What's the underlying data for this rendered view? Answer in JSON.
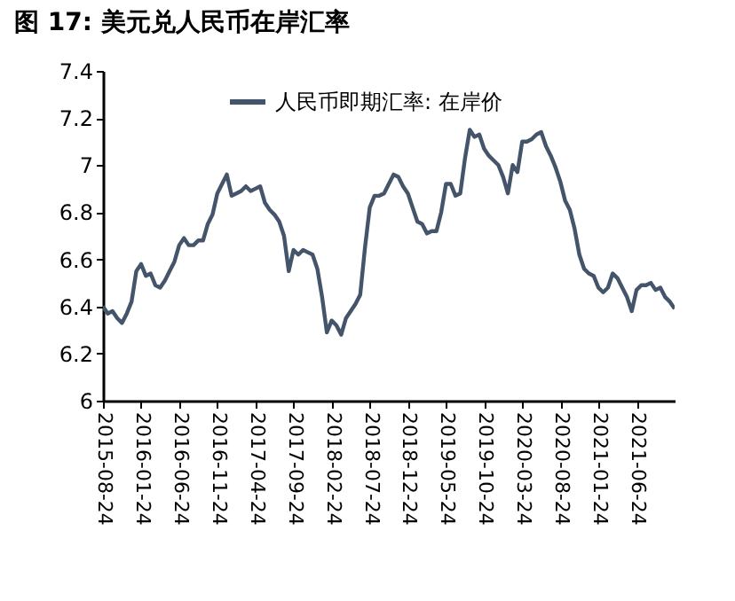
{
  "chart_data": {
    "type": "line",
    "title": "图 17: 美元兑人民币在岸汇率",
    "categories": [
      "2015-08-24",
      null,
      null,
      null,
      null,
      null,
      null,
      null,
      "2016-01-24",
      null,
      null,
      null,
      null,
      null,
      null,
      null,
      "2016-06-24",
      null,
      null,
      null,
      null,
      null,
      null,
      null,
      "2016-11-24",
      null,
      null,
      null,
      null,
      null,
      null,
      null,
      "2017-04-24",
      null,
      null,
      null,
      null,
      null,
      null,
      null,
      "2017-09-24",
      null,
      null,
      null,
      null,
      null,
      null,
      null,
      "2018-02-24",
      null,
      null,
      null,
      null,
      null,
      null,
      null,
      "2018-07-24",
      null,
      null,
      null,
      null,
      null,
      null,
      null,
      "2018-12-24",
      null,
      null,
      null,
      null,
      null,
      null,
      null,
      "2019-05-24",
      null,
      null,
      null,
      null,
      null,
      null,
      null,
      "2019-10-24",
      null,
      null,
      null,
      null,
      null,
      null,
      null,
      "2020-03-24",
      null,
      null,
      null,
      null,
      null,
      null,
      null,
      "2020-08-24",
      null,
      null,
      null,
      null,
      null,
      null,
      null,
      "2021-01-24",
      null,
      null,
      null,
      null,
      null,
      null,
      null,
      "2021-06-24",
      null,
      null,
      null,
      null,
      null,
      null,
      null,
      null
    ],
    "series": [
      {
        "name": "人民币即期汇率: 在岸价",
        "color": "#44546a",
        "values": [
          6.4,
          6.37,
          6.38,
          6.35,
          6.33,
          6.37,
          6.42,
          6.55,
          6.58,
          6.53,
          6.54,
          6.49,
          6.48,
          6.51,
          6.55,
          6.59,
          6.66,
          6.69,
          6.66,
          6.66,
          6.68,
          6.68,
          6.75,
          6.79,
          6.88,
          6.92,
          6.96,
          6.87,
          6.88,
          6.89,
          6.91,
          6.89,
          6.9,
          6.91,
          6.84,
          6.81,
          6.79,
          6.76,
          6.7,
          6.55,
          6.64,
          6.62,
          6.64,
          6.63,
          6.62,
          6.56,
          6.44,
          6.29,
          6.34,
          6.32,
          6.28,
          6.35,
          6.38,
          6.41,
          6.45,
          6.65,
          6.82,
          6.87,
          6.87,
          6.88,
          6.92,
          6.96,
          6.95,
          6.91,
          6.88,
          6.82,
          6.76,
          6.75,
          6.71,
          6.72,
          6.72,
          6.8,
          6.92,
          6.92,
          6.87,
          6.88,
          7.03,
          7.15,
          7.12,
          7.13,
          7.07,
          7.04,
          7.02,
          7.0,
          6.95,
          6.88,
          7.0,
          6.97,
          7.1,
          7.1,
          7.11,
          7.13,
          7.14,
          7.08,
          7.04,
          6.99,
          6.93,
          6.85,
          6.81,
          6.73,
          6.62,
          6.56,
          6.54,
          6.53,
          6.48,
          6.46,
          6.48,
          6.54,
          6.52,
          6.48,
          6.44,
          6.38,
          6.47,
          6.49,
          6.49,
          6.5,
          6.47,
          6.48,
          6.44,
          6.42,
          6.39
        ]
      }
    ],
    "ylim": [
      6,
      7.4
    ],
    "yticks": [
      6,
      6.2,
      6.4,
      6.6,
      6.8,
      7,
      7.2,
      7.4
    ],
    "grid": false,
    "legend": "top",
    "marker": "none",
    "line_style": "solid"
  }
}
